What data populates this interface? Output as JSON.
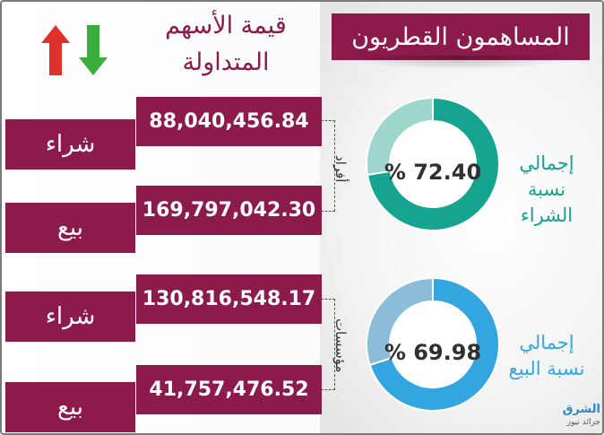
{
  "header": {
    "title": "المساهمون القطريون"
  },
  "column_title": {
    "line1": "قيمة الأسهم",
    "line2": "المتداولة"
  },
  "rows": [
    {
      "label": "شراء",
      "value": "88,040,456.84"
    },
    {
      "label": "بيع",
      "value": "169,797,042.30"
    },
    {
      "label": "شراء",
      "value": "130,816,548.17"
    },
    {
      "label": "بيع",
      "value": "41,757,476.52"
    }
  ],
  "groups": {
    "individuals": "أفراد",
    "institutions": "مؤسسات"
  },
  "donuts": [
    {
      "percent_label": "% 72.40",
      "caption_line1": "إجمالي",
      "caption_line2": "نسبة الشراء",
      "main_color": "#16a38f",
      "rest_color": "#9ed6cc"
    },
    {
      "percent_label": "% 69.98",
      "caption_line1": "إجمالي",
      "caption_line2": "نسبة البيع",
      "main_color": "#33a6e0",
      "rest_color": "#8bbcd8"
    }
  ],
  "logo": {
    "line1": "الشرق",
    "line2": "جرائد نيوز"
  },
  "chart_data": {
    "type": "table",
    "title": "المساهمون القطريون",
    "columns": [
      "قيمة الأسهم المتداولة"
    ],
    "groups": [
      {
        "name": "أفراد",
        "rows": [
          {
            "label": "شراء",
            "value": 88040456.84
          },
          {
            "label": "بيع",
            "value": 169797042.3
          }
        ]
      },
      {
        "name": "مؤسسات",
        "rows": [
          {
            "label": "شراء",
            "value": 130816548.17
          },
          {
            "label": "بيع",
            "value": 41757476.52
          }
        ]
      }
    ],
    "pies": [
      {
        "type": "pie",
        "label": "إجمالي نسبة الشراء",
        "value": 72.4
      },
      {
        "type": "pie",
        "label": "إجمالي نسبة البيع",
        "value": 69.98
      }
    ]
  }
}
